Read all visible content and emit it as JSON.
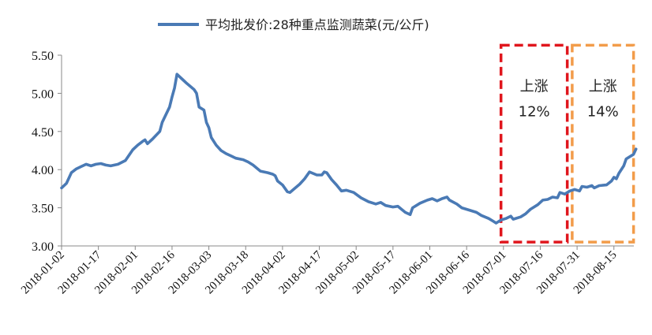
{
  "chart_data": {
    "type": "line",
    "title": "",
    "xlabel": "",
    "ylabel": "",
    "ylim": [
      3.0,
      5.5
    ],
    "yticks": [
      "3.00",
      "3.50",
      "4.00",
      "4.50",
      "5.00",
      "5.50"
    ],
    "xticks": [
      "2018-01-02",
      "2018-01-17",
      "2018-02-01",
      "2018-02-16",
      "2018-03-03",
      "2018-03-18",
      "2018-04-02",
      "2018-04-17",
      "2018-05-02",
      "2018-05-17",
      "2018-06-01",
      "2018-06-16",
      "2018-07-01",
      "2018-07-16",
      "2018-07-31",
      "2018-08-15"
    ],
    "legend": {
      "position": "top-center"
    },
    "grid": false,
    "series": [
      {
        "name": "平均批发价:28种重点监测蔬菜(元/公斤)",
        "color": "#4a7ab5",
        "points": [
          [
            "2018-01-02",
            3.76
          ],
          [
            "2018-01-04",
            3.82
          ],
          [
            "2018-01-06",
            3.96
          ],
          [
            "2018-01-08",
            4.01
          ],
          [
            "2018-01-10",
            4.04
          ],
          [
            "2018-01-12",
            4.07
          ],
          [
            "2018-01-14",
            4.05
          ],
          [
            "2018-01-16",
            4.07
          ],
          [
            "2018-01-18",
            4.08
          ],
          [
            "2018-01-20",
            4.06
          ],
          [
            "2018-01-22",
            4.05
          ],
          [
            "2018-01-25",
            4.07
          ],
          [
            "2018-01-28",
            4.12
          ],
          [
            "2018-01-31",
            4.26
          ],
          [
            "2018-02-02",
            4.32
          ],
          [
            "2018-02-04",
            4.37
          ],
          [
            "2018-02-05",
            4.39
          ],
          [
            "2018-02-06",
            4.34
          ],
          [
            "2018-02-08",
            4.4
          ],
          [
            "2018-02-11",
            4.5
          ],
          [
            "2018-02-12",
            4.62
          ],
          [
            "2018-02-15",
            4.82
          ],
          [
            "2018-02-16",
            4.95
          ],
          [
            "2018-02-17",
            5.07
          ],
          [
            "2018-02-18",
            5.25
          ],
          [
            "2018-02-20",
            5.19
          ],
          [
            "2018-02-22",
            5.13
          ],
          [
            "2018-02-25",
            5.05
          ],
          [
            "2018-02-26",
            5.0
          ],
          [
            "2018-02-27",
            4.82
          ],
          [
            "2018-03-01",
            4.78
          ],
          [
            "2018-03-02",
            4.62
          ],
          [
            "2018-03-03",
            4.55
          ],
          [
            "2018-03-04",
            4.42
          ],
          [
            "2018-03-06",
            4.32
          ],
          [
            "2018-03-08",
            4.25
          ],
          [
            "2018-03-10",
            4.21
          ],
          [
            "2018-03-12",
            4.18
          ],
          [
            "2018-03-14",
            4.15
          ],
          [
            "2018-03-17",
            4.13
          ],
          [
            "2018-03-19",
            4.1
          ],
          [
            "2018-03-21",
            4.06
          ],
          [
            "2018-03-24",
            3.98
          ],
          [
            "2018-03-27",
            3.96
          ],
          [
            "2018-03-29",
            3.94
          ],
          [
            "2018-03-30",
            3.92
          ],
          [
            "2018-03-31",
            3.85
          ],
          [
            "2018-04-02",
            3.8
          ],
          [
            "2018-04-04",
            3.71
          ],
          [
            "2018-04-05",
            3.7
          ],
          [
            "2018-04-09",
            3.81
          ],
          [
            "2018-04-11",
            3.88
          ],
          [
            "2018-04-13",
            3.97
          ],
          [
            "2018-04-16",
            3.93
          ],
          [
            "2018-04-18",
            3.93
          ],
          [
            "2018-04-19",
            3.97
          ],
          [
            "2018-04-20",
            3.96
          ],
          [
            "2018-04-22",
            3.87
          ],
          [
            "2018-04-24",
            3.8
          ],
          [
            "2018-04-26",
            3.72
          ],
          [
            "2018-04-28",
            3.73
          ],
          [
            "2018-05-01",
            3.7
          ],
          [
            "2018-05-04",
            3.63
          ],
          [
            "2018-05-07",
            3.58
          ],
          [
            "2018-05-10",
            3.55
          ],
          [
            "2018-05-12",
            3.57
          ],
          [
            "2018-05-14",
            3.53
          ],
          [
            "2018-05-17",
            3.51
          ],
          [
            "2018-05-19",
            3.52
          ],
          [
            "2018-05-22",
            3.44
          ],
          [
            "2018-05-24",
            3.41
          ],
          [
            "2018-05-25",
            3.5
          ],
          [
            "2018-05-28",
            3.56
          ],
          [
            "2018-05-31",
            3.6
          ],
          [
            "2018-06-02",
            3.62
          ],
          [
            "2018-06-04",
            3.59
          ],
          [
            "2018-06-06",
            3.62
          ],
          [
            "2018-06-08",
            3.64
          ],
          [
            "2018-06-09",
            3.6
          ],
          [
            "2018-06-12",
            3.55
          ],
          [
            "2018-06-14",
            3.5
          ],
          [
            "2018-06-17",
            3.47
          ],
          [
            "2018-06-20",
            3.44
          ],
          [
            "2018-06-22",
            3.4
          ],
          [
            "2018-06-25",
            3.36
          ],
          [
            "2018-06-27",
            3.32
          ],
          [
            "2018-06-28",
            3.3
          ],
          [
            "2018-06-30",
            3.34
          ],
          [
            "2018-07-02",
            3.36
          ],
          [
            "2018-07-04",
            3.39
          ],
          [
            "2018-07-05",
            3.35
          ],
          [
            "2018-07-08",
            3.38
          ],
          [
            "2018-07-10",
            3.42
          ],
          [
            "2018-07-12",
            3.48
          ],
          [
            "2018-07-15",
            3.54
          ],
          [
            "2018-07-17",
            3.6
          ],
          [
            "2018-07-19",
            3.61
          ],
          [
            "2018-07-21",
            3.64
          ],
          [
            "2018-07-23",
            3.63
          ],
          [
            "2018-07-24",
            3.7
          ],
          [
            "2018-07-26",
            3.68
          ],
          [
            "2018-07-28",
            3.72
          ],
          [
            "2018-07-30",
            3.74
          ],
          [
            "2018-08-01",
            3.72
          ],
          [
            "2018-08-02",
            3.78
          ],
          [
            "2018-08-04",
            3.77
          ],
          [
            "2018-08-06",
            3.79
          ],
          [
            "2018-08-07",
            3.76
          ],
          [
            "2018-08-09",
            3.79
          ],
          [
            "2018-08-12",
            3.8
          ],
          [
            "2018-08-14",
            3.85
          ],
          [
            "2018-08-15",
            3.9
          ],
          [
            "2018-08-16",
            3.88
          ],
          [
            "2018-08-17",
            3.95
          ],
          [
            "2018-08-19",
            4.05
          ],
          [
            "2018-08-20",
            4.14
          ],
          [
            "2018-08-23",
            4.2
          ],
          [
            "2018-08-24",
            4.27
          ]
        ]
      }
    ],
    "annotations": [
      {
        "label": "上涨",
        "value": "12%",
        "color": "#e0161d",
        "x_start": "2018-06-30",
        "x_end": "2018-07-27",
        "y_top": 5.63,
        "y_bottom": 3.05,
        "style": "dashed"
      },
      {
        "label": "上涨",
        "value": "14%",
        "color": "#f29c4a",
        "x_start": "2018-07-29",
        "x_end": "2018-08-23",
        "y_top": 5.63,
        "y_bottom": 3.05,
        "style": "dashed"
      }
    ]
  }
}
